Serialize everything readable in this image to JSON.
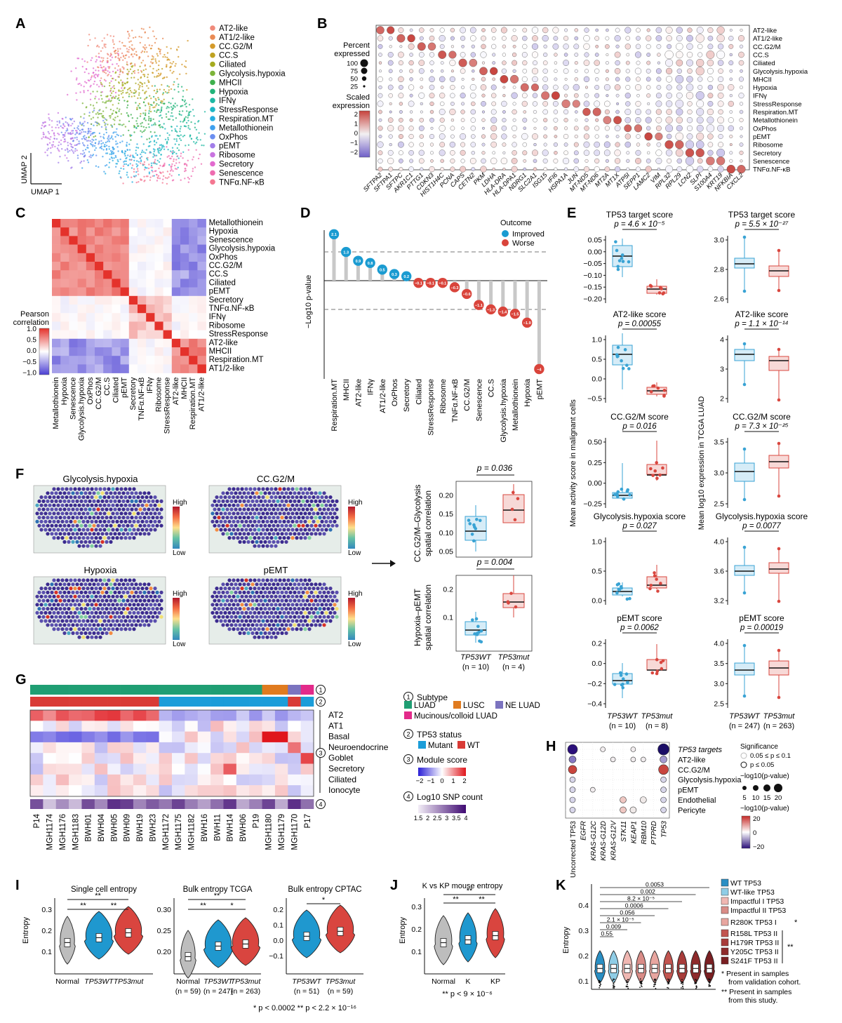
{
  "colors": {
    "improved": "#1a9bd1",
    "worse": "#d9443b",
    "wt_box": "#39a3d4",
    "mut_box": "#d9473f",
    "heat_hi": "#e4322b",
    "heat_lo": "#4b3fd3"
  },
  "panelA": {
    "letter": "A",
    "xaxis": "UMAP 1",
    "yaxis": "UMAP 2",
    "legend": [
      {
        "label": "AT2-like",
        "color": "#f08a7a"
      },
      {
        "label": "AT1/2-like",
        "color": "#e98a54"
      },
      {
        "label": "CC.G2/M",
        "color": "#d49a2a"
      },
      {
        "label": "CC.S",
        "color": "#bfa222"
      },
      {
        "label": "Ciliated",
        "color": "#a5ab1f"
      },
      {
        "label": "Glycolysis.hypoxia",
        "color": "#7db43a"
      },
      {
        "label": "MHCII",
        "color": "#3fb04d"
      },
      {
        "label": "Hypoxia",
        "color": "#22b47a"
      },
      {
        "label": "IFNγ",
        "color": "#1db8a3"
      },
      {
        "label": "StressResponse",
        "color": "#1db6c4"
      },
      {
        "label": "Respiration.MT",
        "color": "#25aee0"
      },
      {
        "label": "Metallothionein",
        "color": "#3ea0ee"
      },
      {
        "label": "OxPhos",
        "color": "#6b8ef0"
      },
      {
        "label": "pEMT",
        "color": "#a27ee9"
      },
      {
        "label": "Ribosome",
        "color": "#c974e0"
      },
      {
        "label": "Secretory",
        "color": "#e26bcf"
      },
      {
        "label": "Senescence",
        "color": "#ee6cb0"
      },
      {
        "label": "TNFα.NF-κB",
        "color": "#f47791"
      }
    ]
  },
  "panelB": {
    "letter": "B",
    "pct_title1": "Percent",
    "pct_title2": "expressed",
    "pct_levels": [
      "100",
      "75",
      "50",
      "25"
    ],
    "scaled_title1": "Scaled",
    "scaled_title2": "expression",
    "scaled_ticks": [
      "2",
      "1",
      "0",
      "−1",
      "−2"
    ],
    "genes": [
      "SFTPA2",
      "SFTPA1",
      "SFTPC",
      "AKR1C1",
      "PTTG1",
      "CDKN3",
      "HIST1H4C",
      "PCNA",
      "CAPS",
      "CETN2",
      "PKM",
      "LDHA",
      "HLA-DRA",
      "HLA-DPA1",
      "NDRG1",
      "SLC2A1",
      "ISG15",
      "IFI6",
      "HSPA1A",
      "JUN",
      "MT-ND5",
      "MT-ND6",
      "MT2A",
      "MT1X",
      "ATP5I",
      "SEPP1",
      "LAMC2",
      "VIM",
      "RPL32",
      "RPL29",
      "LCN2",
      "SLPI",
      "S100A4",
      "KRT19",
      "NFKBIA",
      "CXCL2"
    ],
    "programs": [
      "AT2-like",
      "AT1/2-like",
      "CC.G2/M",
      "CC.S",
      "Ciliated",
      "Glycolysis.hypoxia",
      "MHCII",
      "Hypoxia",
      "IFNγ",
      "StressResponse",
      "Respiration.MT",
      "Metallothionein",
      "OxPhos",
      "pEMT",
      "Ribosome",
      "Secretory",
      "Senescence",
      "TNFα.NF-κB"
    ]
  },
  "panelC": {
    "letter": "C",
    "legend_title1": "Pearson",
    "legend_title2": "correlation",
    "legend_ticks": [
      "1.0",
      "0.5",
      "0.0",
      "−0.5",
      "−1.0"
    ],
    "order": [
      "Metallothionein",
      "Hypoxia",
      "Senescence",
      "Glycolysis.hypoxia",
      "OxPhos",
      "CC.G2/M",
      "CC.S",
      "Ciliated",
      "pEMT",
      "Secretory",
      "TNFα.NF-κB",
      "IFNγ",
      "Ribosome",
      "StressResponse",
      "AT2-like",
      "MHCII",
      "Respiration.MT",
      "AT1/2-like"
    ]
  },
  "panelD": {
    "letter": "D",
    "ylabel": "−Log10 p-value",
    "legend_title": "Outcome",
    "legend_improved": "Improved",
    "legend_worse": "Worse",
    "chart_data": {
      "type": "lollipop",
      "categories": [
        "Respiration.MT",
        "MHCII",
        "AT2-like",
        "IFNγ",
        "AT1/2-like",
        "OxPhos",
        "Secretory",
        "Ciliated",
        "StressResponse",
        "Ribosome",
        "TNFα.NF-κB",
        "CC.G2/M",
        "Senescence",
        "CC.S",
        "Glycolysis.hypoxia",
        "Metallothionein",
        "Hypoxia",
        "pEMT"
      ],
      "values": [
        2.1,
        1.3,
        0.9,
        0.8,
        0.5,
        0.3,
        0.2,
        -0.1,
        -0.1,
        -0.1,
        -0.3,
        -0.6,
        -1.1,
        -1.3,
        -1.4,
        -1.5,
        -1.9,
        -4
      ],
      "labels": [
        "2.1",
        "1.3",
        "0.9",
        "0.8",
        "0.5",
        "0.3",
        "0.2",
        "−0.1",
        "−0.1",
        "−0.1",
        "−0.3",
        "−0.6",
        "−1.1",
        "−1.3",
        "−1.4",
        "−1.5",
        "−1.9",
        "−4"
      ],
      "threshold": 1.3
    }
  },
  "panelE": {
    "letter": "E",
    "ylabel_left": "Mean activity score in malignant cells",
    "ylabel_right": "Mean log10 expression in TCGA LUAD",
    "left": [
      {
        "title": "TP53 target score",
        "p": "p = 4.6 × 10⁻⁵",
        "ticks": [
          "0.05",
          "0.00",
          "−0.05",
          "−0.10",
          "−0.15",
          "−0.20"
        ]
      },
      {
        "title": "AT2-like score",
        "p": "p = 0.00055",
        "ticks": [
          "1.0",
          "0.5",
          "0.0",
          "−0.5"
        ]
      },
      {
        "title": "CC.G2/M score",
        "p": "p = 0.016",
        "ticks": [
          "0.50",
          "0.25",
          "0.00",
          "−0.25"
        ]
      },
      {
        "title": "Glycolysis.hypoxia score",
        "p": "p = 0.027",
        "ticks": [
          "1.0",
          "0.5",
          "0.0"
        ]
      },
      {
        "title": "pEMT score",
        "p": "p = 0.0062",
        "ticks": [
          "0.2",
          "0.0",
          "−0.2",
          "−0.4"
        ]
      }
    ],
    "right": [
      {
        "title": "TP53 target score",
        "p": "p = 5.5 × 10⁻²⁷",
        "ticks": [
          "3.0",
          "2.8",
          "2.6"
        ]
      },
      {
        "title": "AT2-like score",
        "p": "p = 1.1 × 10⁻¹⁴",
        "ticks": [
          "4",
          "3",
          "2"
        ]
      },
      {
        "title": "CC.G2/M score",
        "p": "p = 7.3 × 10⁻²⁵",
        "ticks": [
          "3.5",
          "3.0",
          "2.5"
        ]
      },
      {
        "title": "Glycolysis.hypoxia score",
        "p": "p = 0.0077",
        "ticks": [
          "4.0",
          "3.6",
          "3.2"
        ]
      },
      {
        "title": "pEMT score",
        "p": "p = 0.00019",
        "ticks": [
          "4.0",
          "3.5",
          "3.0",
          "2.5"
        ]
      }
    ],
    "x_wt": "TP53WT",
    "x_mut": "TP53mut",
    "n_left_wt": "(n = 10)",
    "n_left_mut": "(n = 8)",
    "n_right_wt": "(n = 247)",
    "n_right_mut": "(n = 263)"
  },
  "panelF": {
    "letter": "F",
    "maps": [
      "Glycolysis.hypoxia",
      "CC.G2/M",
      "Hypoxia",
      "pEMT"
    ],
    "high": "High",
    "low": "Low",
    "top": {
      "p": "p = 0.036",
      "ylabel1": "CC.G2/M–Glycolysis",
      "ylabel2": "spatial correlation",
      "ticks": [
        "0.20",
        "0.15",
        "0.10",
        "0.05"
      ]
    },
    "bottom": {
      "p": "p = 0.004",
      "ylabel1": "Hypoxia–pEMT",
      "ylabel2": "spatial correlation",
      "ticks": [
        "0.2",
        "0.1"
      ]
    },
    "x_wt": "TP53WT",
    "x_mut": "TP53mut",
    "n_wt": "(n = 10)",
    "n_mut": "(n = 4)"
  },
  "panelG": {
    "letter": "G",
    "rows": [
      "AT2",
      "AT1",
      "Basal",
      "Neuroendocrine",
      "Goblet",
      "Secretory",
      "Ciliated",
      "Ionocyte"
    ],
    "samples": [
      "P14",
      "MGH1174",
      "MGH1176",
      "MGH1183",
      "BWH01",
      "BWH04",
      "BWH05",
      "BWH09",
      "BWH19",
      "BWH23",
      "MGH1172",
      "MGH1175",
      "MGH1182",
      "BWH16",
      "BWH11",
      "BWH14",
      "BWH06",
      "P19",
      "MGH1180",
      "MGH1179",
      "MGH1170",
      "P17"
    ],
    "circle_nums": [
      "1",
      "2",
      "3",
      "4"
    ],
    "subtype_title": "Subtype",
    "subtypes": [
      {
        "label": "LUAD",
        "color": "#1f9e73"
      },
      {
        "label": "LUSC",
        "color": "#e07b1f"
      },
      {
        "label": "NE LUAD",
        "color": "#7b73bf"
      },
      {
        "label": "Mucinous/colloid LUAD",
        "color": "#e32a8a"
      }
    ],
    "status_title": "TP53 status",
    "status": [
      {
        "label": "Mutant",
        "color": "#1b9dd9"
      },
      {
        "label": "WT",
        "color": "#d93b36"
      }
    ],
    "module_title": "Module score",
    "module_ticks": [
      "−2",
      "−1",
      "0",
      "1",
      "2"
    ],
    "snp_title": "Log10 SNP count",
    "snp_ticks": [
      "1.5",
      "2",
      "2.5",
      "3",
      "3.5",
      "4"
    ]
  },
  "panelH": {
    "letter": "H",
    "rows": [
      "TP53 targets",
      "AT2-like",
      "CC.G2/M",
      "Glycolysis.hypoxia",
      "pEMT",
      "Endothelial",
      "Pericyte"
    ],
    "cols": [
      "Uncorrected TP53",
      "EGFR",
      "KRAS-G12C",
      "KRAS-G12D",
      "KRAS-G12V",
      "STK11",
      "KEAP1",
      "RBM10",
      "PTPRD",
      "TP53"
    ],
    "sig_title": "Significance",
    "sig1": "0.05 ≤ p ≤ 0.1",
    "sig2": "p ≤ 0.05",
    "size_title": "−log10(p-value)",
    "size_ticks": [
      "5",
      "10",
      "15",
      "20"
    ],
    "color_title": "−log10(p-value)",
    "color_ticks": [
      "20",
      "0",
      "−20"
    ]
  },
  "panelI": {
    "letter": "I",
    "ylabel": "Entropy",
    "plots": [
      {
        "title": "Single cell entropy",
        "ticks": [
          "0.3",
          "0.2",
          "0.1"
        ],
        "groups": [
          "Normal",
          "TP53WT",
          "TP53mut"
        ],
        "ns": [],
        "stars": [
          "**",
          "**",
          "**"
        ]
      },
      {
        "title": "Bulk entropy TCGA",
        "ticks": [
          "0.30",
          "0.25",
          "0.20"
        ],
        "groups": [
          "Normal",
          "TP53WT",
          "TP53mut"
        ],
        "ns": [
          "(n = 59)",
          "(n = 247)",
          "(n = 263)"
        ],
        "stars": [
          "**",
          "**",
          "*"
        ]
      },
      {
        "title": "Bulk entropy CPTAC",
        "ticks": [
          "0.2",
          "0.1",
          "0.0",
          "−0.1"
        ],
        "groups": [
          "TP53WT",
          "TP53mut"
        ],
        "ns": [
          "(n = 51)",
          "(n = 59)"
        ],
        "stars": [
          "*"
        ]
      }
    ],
    "footnote": "* p < 0.0002  ** p < 2.2 × 10⁻¹⁶"
  },
  "panelJ": {
    "letter": "J",
    "title": "K vs KP mouse entropy",
    "ylabel": "Entropy",
    "ticks": [
      "0.3",
      "0.2",
      "0.1"
    ],
    "groups": [
      "Normal",
      "K",
      "KP"
    ],
    "stars": [
      "**",
      "**",
      "**"
    ],
    "footnote": "** p < 9 × 10⁻⁶"
  },
  "panelK": {
    "letter": "K",
    "ylabel": "Entropy",
    "ticks": [
      "0.4",
      "0.3",
      "0.2",
      "0.1"
    ],
    "pvals": [
      "0.0053",
      "0.002",
      "8.2 × 10⁻⁵",
      "0.0006",
      "0.056",
      "2.1 × 10⁻⁵",
      "0.009",
      "0.55"
    ],
    "legend": [
      {
        "label": "WT TP53",
        "color": "#2a8fc4"
      },
      {
        "label": "WT-like TP53",
        "color": "#8fcde6"
      },
      {
        "label": "Impactful I TP53",
        "color": "#f0b7b2"
      },
      {
        "label": "Impactful II TP53",
        "color": "#d98c87"
      },
      {
        "label": "R280K TP53 I",
        "color": "#e8a6a0",
        "mark": "*"
      },
      {
        "label": "R158L TP53 II",
        "color": "#c25550"
      },
      {
        "label": "H179R TP53 II",
        "color": "#a83c3a"
      },
      {
        "label": "Y205C TP53 II",
        "color": "#8e2a2b"
      },
      {
        "label": "S241F TP53 II",
        "color": "#7a1f22"
      }
    ],
    "group_mark": "**",
    "note1": "* Present in samples",
    "note1b": "from validation cohort.",
    "note2": "** Present in samples",
    "note2b": "from this study."
  }
}
